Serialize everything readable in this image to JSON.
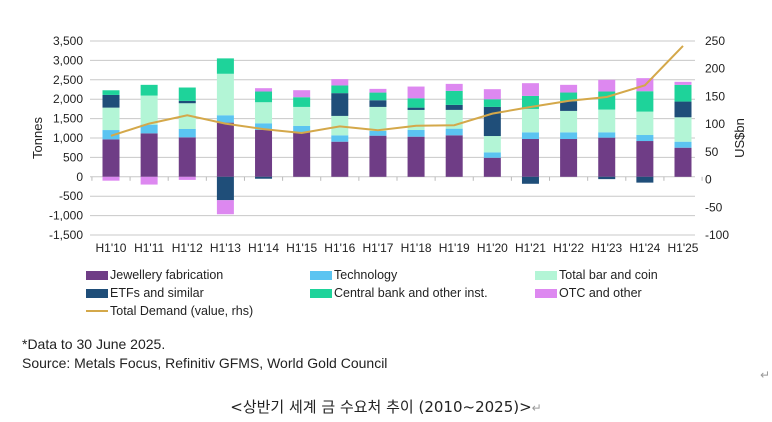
{
  "chart_data": {
    "type": "bar",
    "stacked": true,
    "categories": [
      "H1'10",
      "H1'11",
      "H1'12",
      "H1'13",
      "H1'14",
      "H1'15",
      "H1'16",
      "H1'17",
      "H1'18",
      "H1'19",
      "H1'20",
      "H1'21",
      "H1'22",
      "H1'23",
      "H1'24",
      "H1'25"
    ],
    "ylabel": "Tonnes",
    "ylabel_right": "US$bn",
    "ylim": [
      -1500,
      3500
    ],
    "ylim_right": [
      -100,
      250
    ],
    "yticks": [
      "3,500",
      "3,000",
      "2,500",
      "2,000",
      "1,500",
      "1,000",
      "500",
      "0",
      "-500",
      "-1,000",
      "-1,500"
    ],
    "yticks_right": [
      "250",
      "200",
      "150",
      "100",
      "50",
      "0",
      "-50",
      "-100"
    ],
    "grid": true,
    "legend_placement": "bottom",
    "series": [
      {
        "name": "Jewellery fabrication",
        "color": "#6f3d86",
        "values": [
          965,
          1120,
          1017,
          1396,
          1207,
          1146,
          905,
          1060,
          1034,
          1069,
          491,
          974,
          974,
          1009,
          922,
          750
        ]
      },
      {
        "name": "Technology",
        "color": "#5bc4f1",
        "values": [
          240,
          224,
          215,
          190,
          172,
          164,
          164,
          121,
          172,
          172,
          138,
          172,
          172,
          138,
          155,
          155
        ]
      },
      {
        "name": "Total bar and coin",
        "color": "#b3f5d6",
        "values": [
          578,
          750,
          664,
          1069,
          543,
          491,
          500,
          620,
          517,
          483,
          422,
          603,
          552,
          586,
          603,
          629
        ]
      },
      {
        "name": "ETFs and similar",
        "color": "#1f4e79",
        "values": [
          327,
          0,
          60,
          -603,
          -50,
          0,
          587,
          172,
          60,
          129,
          750,
          -180,
          250,
          -60,
          -150,
          405
        ]
      },
      {
        "name": "Central bank and other inst.",
        "color": "#1ed39a",
        "values": [
          120,
          276,
          345,
          397,
          276,
          250,
          198,
          198,
          241,
          362,
          198,
          336,
          224,
          465,
          526,
          431
        ]
      },
      {
        "name": "OTC and other",
        "color": "#dd88f0",
        "values": [
          -100,
          -200,
          -80,
          -362,
          86,
          181,
          164,
          95,
          302,
          180,
          259,
          328,
          198,
          302,
          336,
          78
        ]
      }
    ],
    "line_series": {
      "name": "Total Demand (value, rhs)",
      "color": "#d4a84a",
      "axis": "right",
      "values": [
        79,
        101,
        116,
        101,
        91,
        84,
        96,
        89,
        97,
        98,
        119,
        131,
        142,
        149,
        170,
        241
      ]
    }
  },
  "notes": {
    "data_note": "*Data to 30 June 2025.",
    "source": "Source: Metals Focus, Refinitiv GFMS, World Gold Council"
  },
  "caption": "<상반기 세계 금 수요처 추이 (2010~2025)>",
  "paragraph_mark": "↵"
}
